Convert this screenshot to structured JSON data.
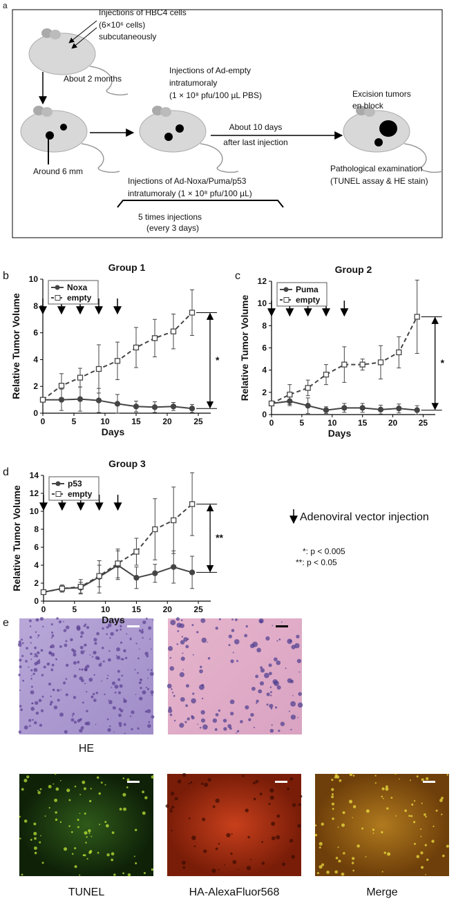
{
  "panel_labels": [
    "a",
    "b",
    "c",
    "d",
    "e"
  ],
  "diagram": {
    "step1": [
      "Injections of HBC4 cells",
      "(6×10⁶ cells)",
      "subcutaneously"
    ],
    "wait": "About 2 months",
    "size": "Around 6 mm",
    "control": [
      "Injections of Ad-empty",
      "intratumoraly",
      "(1 × 10⁸ pfu/100 µL PBS)"
    ],
    "treatment": [
      "Injections of Ad-Noxa/Puma/p53",
      "intratumoraly (1 × 10⁸ pfu/100 µL)"
    ],
    "schedule": [
      "5 times injections",
      "(every 3 days)"
    ],
    "interval": [
      "About 10 days",
      "after last injection"
    ],
    "excision": [
      "Excision tumors",
      "en block"
    ],
    "exam": [
      "Pathological examination",
      "(TUNEL assay & HE stain)"
    ]
  },
  "chart_data": [
    {
      "type": "line",
      "title": "Group 1",
      "x_label": "Days",
      "y_label": "Relative Tumor Volume",
      "x": [
        0,
        3,
        6,
        9,
        12,
        15,
        18,
        21,
        24
      ],
      "xlim": [
        0,
        27
      ],
      "xticks": [
        0,
        5,
        10,
        15,
        20,
        25
      ],
      "ylim": [
        0,
        10
      ],
      "yticks": [
        0,
        2,
        4,
        6,
        8,
        10
      ],
      "injection_days": [
        0,
        3,
        6,
        9,
        12
      ],
      "annotation": "*",
      "series": [
        {
          "name": "Noxa",
          "color": "#444444",
          "marker": "circle",
          "dashed": false,
          "values": [
            1,
            1.0,
            1.05,
            0.95,
            0.7,
            0.5,
            0.45,
            0.5,
            0.35
          ],
          "errors": [
            0,
            0.8,
            0.9,
            0.9,
            0.7,
            0.4,
            0.4,
            0.3,
            0.3
          ]
        },
        {
          "name": "empty",
          "color": "#444444",
          "marker": "square",
          "dashed": true,
          "values": [
            1,
            2.05,
            2.65,
            3.3,
            3.9,
            4.9,
            5.6,
            6.1,
            7.5
          ],
          "errors": [
            0,
            0.9,
            0.7,
            1.8,
            1.4,
            1.5,
            1.4,
            1.3,
            1.7
          ]
        }
      ]
    },
    {
      "type": "line",
      "title": "Group 2",
      "x_label": "Days",
      "y_label": "Relative Tumor Volume",
      "x": [
        0,
        3,
        6,
        9,
        12,
        15,
        18,
        21,
        24
      ],
      "xlim": [
        0,
        27
      ],
      "xticks": [
        0,
        5,
        10,
        15,
        20,
        25
      ],
      "ylim": [
        0,
        12
      ],
      "yticks": [
        0,
        2,
        4,
        6,
        8,
        10,
        12
      ],
      "injection_days": [
        0,
        3,
        6,
        9,
        12
      ],
      "annotation": "*",
      "series": [
        {
          "name": "Puma",
          "color": "#444444",
          "marker": "circle",
          "dashed": false,
          "values": [
            1,
            1.2,
            0.8,
            0.4,
            0.6,
            0.6,
            0.45,
            0.55,
            0.4
          ],
          "errors": [
            0,
            0.4,
            0.7,
            0.3,
            0.4,
            0.4,
            0.4,
            0.4,
            0.4
          ]
        },
        {
          "name": "empty",
          "color": "#444444",
          "marker": "square",
          "dashed": true,
          "values": [
            1,
            1.8,
            2.4,
            3.6,
            4.5,
            4.5,
            4.7,
            5.6,
            8.8
          ],
          "errors": [
            0,
            0.9,
            0.7,
            0.9,
            1.6,
            0.5,
            1.5,
            1.4,
            3.3
          ]
        }
      ]
    },
    {
      "type": "line",
      "title": "Group 3",
      "x_label": "Days",
      "y_label": "Relative Tumor Volume",
      "x": [
        0,
        3,
        6,
        9,
        12,
        15,
        18,
        21,
        24
      ],
      "xlim": [
        0,
        27
      ],
      "xticks": [
        0,
        5,
        10,
        15,
        20,
        25
      ],
      "ylim": [
        0,
        14
      ],
      "yticks": [
        0,
        2,
        4,
        6,
        8,
        10,
        12,
        14
      ],
      "injection_days": [
        0,
        3,
        6,
        9,
        12
      ],
      "annotation": "**",
      "series": [
        {
          "name": "p53",
          "color": "#444444",
          "marker": "circle",
          "dashed": false,
          "values": [
            1,
            1.4,
            1.5,
            2.7,
            4.0,
            2.6,
            3.1,
            3.8,
            3.2
          ],
          "errors": [
            0,
            0.3,
            0.6,
            1.8,
            1.6,
            1.2,
            1.0,
            1.8,
            1.8
          ]
        },
        {
          "name": "empty",
          "color": "#444444",
          "marker": "square",
          "dashed": true,
          "values": [
            1,
            1.4,
            1.6,
            2.8,
            4.2,
            5.5,
            8.0,
            9.0,
            10.8
          ],
          "errors": [
            0,
            0.4,
            0.8,
            1.2,
            1.6,
            1.5,
            3.4,
            3.7,
            3.5
          ]
        }
      ]
    }
  ],
  "key": {
    "arrow": "Adenoviral vector injection",
    "p_values": [
      "*: p < 0.005",
      "**: p < 0.05"
    ]
  },
  "panel_e": {
    "top": [
      "HE"
    ],
    "bottom": [
      "TUNEL",
      "HA-AlexaFluor568",
      "Merge"
    ]
  }
}
